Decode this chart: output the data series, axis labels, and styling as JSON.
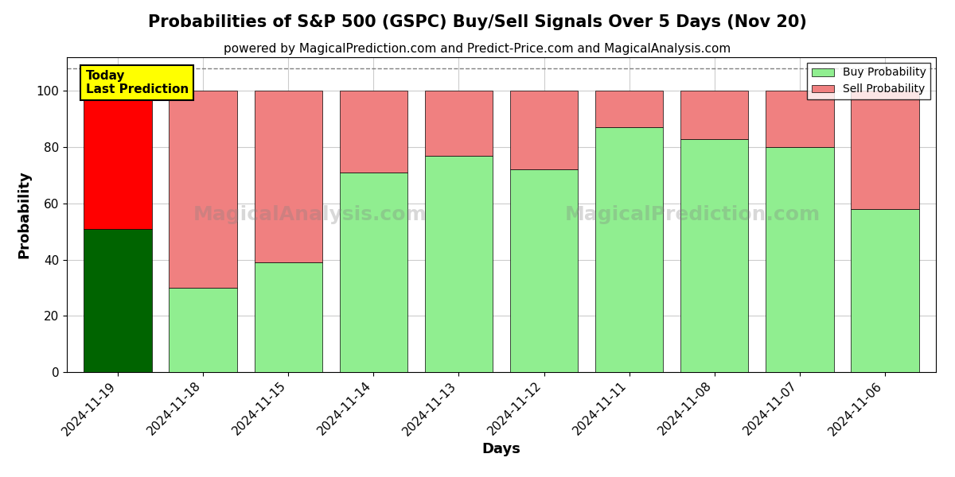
{
  "title": "Probabilities of S&P 500 (GSPC) Buy/Sell Signals Over 5 Days (Nov 20)",
  "subtitle": "powered by MagicalPrediction.com and Predict-Price.com and MagicalAnalysis.com",
  "xlabel": "Days",
  "ylabel": "Probability",
  "watermark1": "MagicalAnalysis.com",
  "watermark2": "MagicalPrediction.com",
  "dates": [
    "2024-11-19",
    "2024-11-18",
    "2024-11-15",
    "2024-11-14",
    "2024-11-13",
    "2024-11-12",
    "2024-11-11",
    "2024-11-08",
    "2024-11-07",
    "2024-11-06"
  ],
  "buy_values": [
    51,
    30,
    39,
    71,
    77,
    72,
    87,
    83,
    80,
    58
  ],
  "sell_values": [
    49,
    70,
    61,
    29,
    23,
    28,
    13,
    17,
    20,
    42
  ],
  "today_buy_color": "#006400",
  "today_sell_color": "#FF0000",
  "buy_color": "#90EE90",
  "sell_color": "#F08080",
  "today_label_bg": "#FFFF00",
  "today_label_text": "Today\nLast Prediction",
  "legend_buy_label": "Buy Probability",
  "legend_sell_label": "Sell Probability",
  "ylim": [
    0,
    112
  ],
  "dashed_line_y": 108,
  "bar_width": 0.8,
  "background_color": "#ffffff",
  "grid_color": "#cccccc",
  "title_fontsize": 15,
  "subtitle_fontsize": 11,
  "axis_label_fontsize": 13,
  "tick_fontsize": 11
}
